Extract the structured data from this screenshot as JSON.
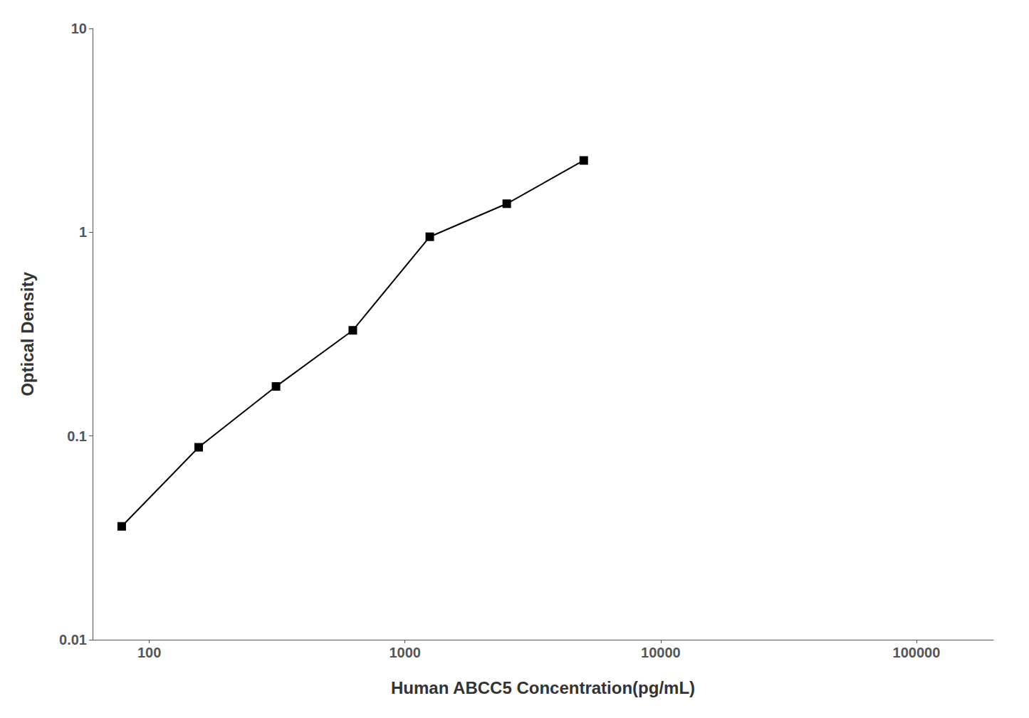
{
  "chart_data": {
    "type": "line",
    "xlabel": "Human ABCC5 Concentration(pg/mL)",
    "ylabel": "Optical Density",
    "x": [
      78,
      156,
      313,
      625,
      1250,
      2500,
      5000
    ],
    "values": [
      0.036,
      0.088,
      0.175,
      0.33,
      0.95,
      1.38,
      2.25
    ],
    "xlim": [
      60,
      200000
    ],
    "ylim": [
      0.01,
      10
    ],
    "xticks": [
      100,
      1000,
      10000,
      100000
    ],
    "yticks": [
      0.01,
      0.1,
      1,
      10
    ],
    "log": true,
    "grid": false,
    "color": "#000000",
    "marker": "square"
  }
}
